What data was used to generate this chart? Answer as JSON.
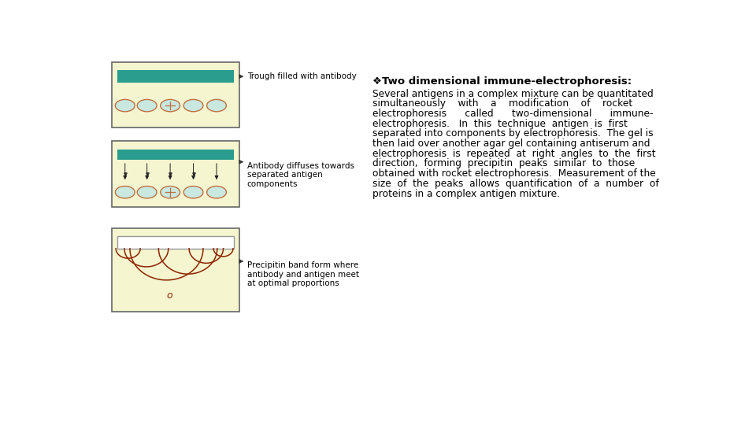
{
  "bg_color": "#ffffff",
  "panel_bg": "#f5f5d0",
  "panel_border": "#666666",
  "trough_color": "#2a9d8f",
  "ellipse_fill": "#c8e8e0",
  "ellipse_border": "#c07040",
  "arrow_color": "#333333",
  "precipitin_color": "#8B2500",
  "title_bold": "Two dimensional immune-electrophoresis:",
  "label1": "Trough filled with antibody",
  "label2": "Antibody diffuses towards\nseparated antigen\ncomponents",
  "label3": "Precipitin band form where\nantibody and antigen meet\nat optimal proportions",
  "font_size_title": 9.5,
  "font_size_body": 8.8,
  "font_size_label": 7.5,
  "body_lines": [
    "Several antigens in a complex mixture can be quantitated",
    "simultaneously    with    a    modification    of    rocket",
    "electrophoresis      called      two-dimensional      immune-",
    "electrophoresis.   In  this  technique  antigen  is  first",
    "separated into components by electrophoresis.  The gel is",
    "then laid over another agar gel containing antiserum and",
    "electrophoresis  is  repeated  at  right  angles  to  the  first",
    "direction,  forming  precipitin  peaks  similar  to  those",
    "obtained with rocket electrophoresis.  Measurement of the",
    "size  of  the  peaks  allows  quantification  of  a  number  of",
    "proteins in a complex antigen mixture."
  ]
}
